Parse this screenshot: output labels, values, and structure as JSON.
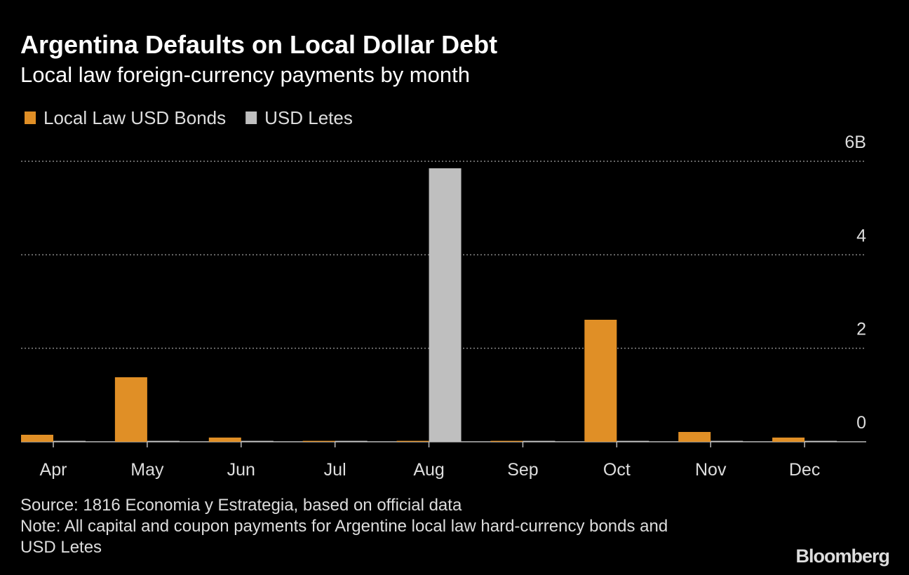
{
  "chart_data": {
    "type": "bar",
    "title": "Argentina Defaults on Local Dollar Debt",
    "subtitle": "Local law foreign-currency payments by month",
    "categories": [
      "Apr",
      "May",
      "Jun",
      "Jul",
      "Aug",
      "Sep",
      "Oct",
      "Nov",
      "Dec"
    ],
    "series": [
      {
        "name": "Local Law USD Bonds",
        "color": "#e08f26",
        "values": [
          0.15,
          1.38,
          0.09,
          0.02,
          0.02,
          0.02,
          2.61,
          0.21,
          0.09
        ]
      },
      {
        "name": "USD Letes",
        "color": "#bfbfbf",
        "values": [
          0.02,
          0.02,
          0.02,
          0.02,
          5.85,
          0.02,
          0.02,
          0.02,
          0.02
        ]
      }
    ],
    "ylim": [
      0,
      6
    ],
    "yticks": [
      0,
      2,
      4,
      {
        "value": 6,
        "label": "6B"
      }
    ],
    "grid": true,
    "source": "Source: 1816 Economia y Estrategia, based on official data",
    "note": "Note: All capital and coupon payments for Argentine local law hard-currency bonds and USD Letes",
    "logo": "Bloomberg"
  }
}
